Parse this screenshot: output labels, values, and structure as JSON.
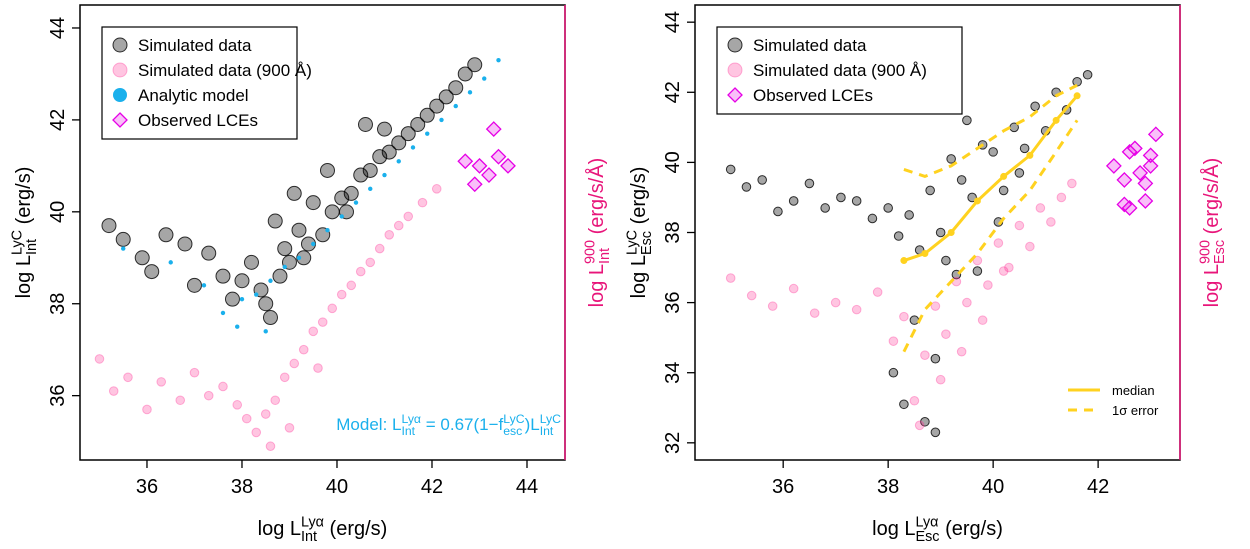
{
  "chart_data": [
    {
      "type": "scatter",
      "xlabel": [
        {
          "text": "log L"
        },
        {
          "sup": "Lyα",
          "sub": "Int"
        },
        {
          "text": " (erg/s)"
        }
      ],
      "ylabel": [
        {
          "text": "log L"
        },
        {
          "sup": "LyC",
          "sub": "Int"
        },
        {
          "text": " (erg/s)"
        }
      ],
      "y2label": [
        {
          "text": "log L"
        },
        {
          "sup": "900",
          "sub": "Int"
        },
        {
          "text": " (erg/s/Å)"
        }
      ],
      "annotation": [
        {
          "text": "Model: L"
        },
        {
          "sup": "Lyα",
          "sub": "Int"
        },
        {
          "text": " = 0.67(1−f"
        },
        {
          "sup": "LyC",
          "sub": "esc"
        },
        {
          "text": ")L"
        },
        {
          "sup": "LyC",
          "sub": "Int"
        }
      ],
      "annotation_color": "#1ab0ec",
      "y2color": "#e8157a",
      "xlim": [
        34.59,
        44.8
      ],
      "ylim": [
        34.6,
        44.5
      ],
      "y2lim": [
        34.6,
        44.5
      ],
      "xticks": [
        36,
        38,
        40,
        42,
        44
      ],
      "yticks": [
        36,
        38,
        40,
        42,
        44
      ],
      "legend": "upper left",
      "series": [
        {
          "name": "Simulated data",
          "marker": "large-circle",
          "color": "#000000",
          "x": [
            35.2,
            35.5,
            35.9,
            36.1,
            36.4,
            36.8,
            37.0,
            37.3,
            37.6,
            37.8,
            38.0,
            38.2,
            38.4,
            38.5,
            38.6,
            38.8,
            38.9,
            39.0,
            39.2,
            39.4,
            39.5,
            39.7,
            39.9,
            40.1,
            40.3,
            40.5,
            40.7,
            40.9,
            41.1,
            41.3,
            41.5,
            41.7,
            41.9,
            42.1,
            42.3,
            42.5,
            42.7,
            42.9,
            38.7,
            39.1,
            39.8,
            40.6,
            41.0,
            39.3,
            40.2
          ],
          "values": [
            39.7,
            39.4,
            39.0,
            38.7,
            39.5,
            39.3,
            38.4,
            39.1,
            38.6,
            38.1,
            38.5,
            38.9,
            38.3,
            38.0,
            37.7,
            38.6,
            39.2,
            38.9,
            39.6,
            39.3,
            40.2,
            39.5,
            40.0,
            40.3,
            40.4,
            40.8,
            40.9,
            41.2,
            41.3,
            41.5,
            41.7,
            41.9,
            42.1,
            42.3,
            42.5,
            42.7,
            43.0,
            43.2,
            39.8,
            40.4,
            40.9,
            41.9,
            41.8,
            39.0,
            40.0
          ]
        },
        {
          "name": "Simulated data (900 Å)",
          "marker": "circle",
          "color": "#ff2d95",
          "axis": "y2",
          "x": [
            35.0,
            35.3,
            35.6,
            36.0,
            36.3,
            36.7,
            37.0,
            37.3,
            37.6,
            37.9,
            38.1,
            38.3,
            38.5,
            38.7,
            38.9,
            39.1,
            39.3,
            39.5,
            39.7,
            39.9,
            40.1,
            40.3,
            40.5,
            40.7,
            40.9,
            41.1,
            41.3,
            41.5,
            41.8,
            42.1,
            38.6,
            39.0,
            39.6
          ],
          "values": [
            36.8,
            36.1,
            36.4,
            35.7,
            36.3,
            35.9,
            36.5,
            36.0,
            36.2,
            35.8,
            35.5,
            35.2,
            35.6,
            35.9,
            36.4,
            36.7,
            37.0,
            37.4,
            37.6,
            37.9,
            38.2,
            38.4,
            38.7,
            38.9,
            39.2,
            39.5,
            39.7,
            39.9,
            40.2,
            40.5,
            34.9,
            35.3,
            36.6
          ]
        },
        {
          "name": "Analytic model",
          "marker": "dot",
          "color": "#1ab0ec",
          "x": [
            35.5,
            36.5,
            37.2,
            37.6,
            38.0,
            38.3,
            38.6,
            38.9,
            39.2,
            39.5,
            39.8,
            40.1,
            40.4,
            40.7,
            41.0,
            41.3,
            41.6,
            41.9,
            42.2,
            42.5,
            42.8,
            43.1,
            43.4,
            37.9,
            38.5
          ],
          "values": [
            39.2,
            38.9,
            38.4,
            37.8,
            38.1,
            38.2,
            38.5,
            38.8,
            39.0,
            39.3,
            39.6,
            39.9,
            40.2,
            40.5,
            40.8,
            41.1,
            41.4,
            41.7,
            42.0,
            42.3,
            42.6,
            42.9,
            43.3,
            37.5,
            37.4
          ]
        },
        {
          "name": "Observed LCEs",
          "marker": "diamond",
          "color": "#e600e6",
          "axis": "y2",
          "x": [
            42.7,
            43.0,
            43.3,
            43.4,
            43.6,
            43.2,
            42.9
          ],
          "values": [
            41.1,
            41.0,
            41.8,
            41.2,
            41.0,
            40.8,
            40.6
          ]
        }
      ]
    },
    {
      "type": "scatter",
      "xlabel": [
        {
          "text": "log L"
        },
        {
          "sup": "Lyα",
          "sub": "Esc"
        },
        {
          "text": " (erg/s)"
        }
      ],
      "ylabel": [
        {
          "text": "log L"
        },
        {
          "sup": "LyC",
          "sub": "Esc"
        },
        {
          "text": " (erg/s)"
        }
      ],
      "y2label": [
        {
          "text": "log L"
        },
        {
          "sup": "900",
          "sub": "Esc"
        },
        {
          "text": " (erg/s/Å)"
        }
      ],
      "y2color": "#e8157a",
      "xlim": [
        34.32,
        43.56
      ],
      "ylim": [
        31.51,
        44.49
      ],
      "y2lim": [
        31.51,
        44.49
      ],
      "xticks": [
        36,
        38,
        40,
        42
      ],
      "yticks": [
        32,
        34,
        36,
        38,
        40,
        42,
        44
      ],
      "legend": "upper left",
      "line_legend": "lower right",
      "series": [
        {
          "name": "Simulated data",
          "marker": "circle",
          "color": "#000000",
          "x": [
            35.0,
            35.3,
            35.6,
            35.9,
            36.2,
            36.5,
            36.8,
            37.1,
            37.4,
            37.7,
            38.0,
            38.2,
            38.4,
            38.6,
            38.8,
            39.0,
            39.2,
            39.4,
            39.6,
            39.8,
            40.0,
            40.2,
            40.4,
            40.6,
            40.8,
            41.0,
            41.2,
            41.4,
            41.6,
            41.8,
            38.5,
            38.9,
            39.3,
            39.7,
            40.1,
            38.3,
            38.7,
            39.1,
            38.1,
            38.9,
            40.5,
            39.5
          ],
          "values": [
            39.8,
            39.3,
            39.5,
            38.6,
            38.9,
            39.4,
            38.7,
            39.0,
            38.9,
            38.4,
            38.7,
            37.9,
            38.5,
            37.5,
            39.2,
            38.0,
            40.1,
            39.5,
            39.0,
            40.5,
            40.3,
            39.2,
            41.0,
            40.4,
            41.6,
            40.9,
            42.0,
            41.5,
            42.3,
            42.5,
            35.5,
            34.4,
            36.8,
            36.9,
            38.3,
            33.1,
            32.6,
            37.2,
            34.0,
            32.3,
            39.7,
            41.2
          ]
        },
        {
          "name": "Simulated data (900 Å)",
          "marker": "circle",
          "color": "#ff2d95",
          "axis": "y2",
          "x": [
            35.0,
            35.4,
            35.8,
            36.2,
            36.6,
            37.0,
            37.4,
            37.8,
            38.1,
            38.3,
            38.5,
            38.7,
            38.9,
            39.1,
            39.3,
            39.5,
            39.7,
            39.9,
            40.1,
            40.3,
            40.5,
            40.7,
            40.9,
            41.1,
            41.3,
            41.5,
            38.6,
            39.0,
            39.4,
            39.8,
            40.2
          ],
          "values": [
            36.7,
            36.2,
            35.9,
            36.4,
            35.7,
            36.0,
            35.8,
            36.3,
            34.9,
            35.6,
            33.2,
            34.5,
            35.9,
            35.1,
            36.6,
            36.0,
            37.2,
            36.5,
            37.7,
            37.0,
            38.2,
            37.6,
            38.7,
            38.3,
            39.0,
            39.4,
            32.5,
            33.8,
            34.6,
            35.5,
            36.9
          ]
        },
        {
          "name": "Observed LCEs",
          "marker": "diamond",
          "color": "#e600e6",
          "axis": "y2",
          "x": [
            42.3,
            42.5,
            42.6,
            42.7,
            42.8,
            42.9,
            43.0,
            43.1,
            42.5,
            43.0,
            42.6,
            42.9
          ],
          "values": [
            39.9,
            39.5,
            38.7,
            40.4,
            39.7,
            38.9,
            40.2,
            40.8,
            38.8,
            39.9,
            40.3,
            39.4
          ]
        },
        {
          "name": "median",
          "marker": "line",
          "color": "#ffd21f",
          "x": [
            38.3,
            38.7,
            39.2,
            39.7,
            40.2,
            40.7,
            41.2,
            41.6
          ],
          "values": [
            37.2,
            37.4,
            38.0,
            38.9,
            39.6,
            40.2,
            41.2,
            41.9
          ]
        },
        {
          "name": "1σ error",
          "marker": "dashed-line",
          "color": "#ffd21f",
          "x": [
            38.3,
            38.7,
            39.2,
            39.7,
            40.2,
            40.7,
            41.2,
            41.6
          ],
          "values": [
            39.8,
            39.6,
            39.9,
            40.4,
            40.9,
            41.3,
            41.9,
            42.2
          ]
        },
        {
          "marker": "dashed-line",
          "color": "#ffd21f",
          "x": [
            38.3,
            38.7,
            39.2,
            39.7,
            40.2,
            40.7,
            41.2,
            41.6
          ],
          "values": [
            34.6,
            35.8,
            36.6,
            37.4,
            38.4,
            39.2,
            40.3,
            41.2
          ]
        }
      ]
    }
  ]
}
